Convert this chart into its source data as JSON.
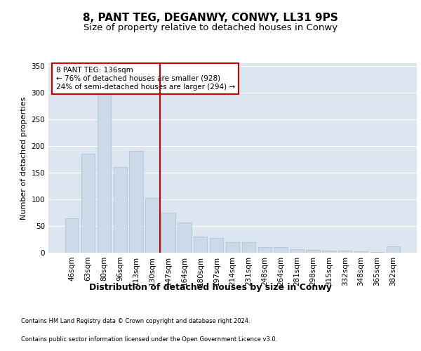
{
  "title": "8, PANT TEG, DEGANWY, CONWY, LL31 9PS",
  "subtitle": "Size of property relative to detached houses in Conwy",
  "xlabel": "Distribution of detached houses by size in Conwy",
  "ylabel": "Number of detached properties",
  "categories": [
    "46sqm",
    "63sqm",
    "80sqm",
    "96sqm",
    "113sqm",
    "130sqm",
    "147sqm",
    "164sqm",
    "180sqm",
    "197sqm",
    "214sqm",
    "231sqm",
    "248sqm",
    "264sqm",
    "281sqm",
    "298sqm",
    "315sqm",
    "332sqm",
    "348sqm",
    "365sqm",
    "382sqm"
  ],
  "values": [
    65,
    185,
    320,
    160,
    190,
    103,
    75,
    57,
    30,
    28,
    20,
    20,
    10,
    11,
    6,
    5,
    4,
    4,
    3,
    1,
    12
  ],
  "bar_color": "#ccd9e8",
  "bar_edge_color": "#a8bfd0",
  "vline_color": "#cc0000",
  "vline_x": 5.5,
  "annotation_text": "8 PANT TEG: 136sqm\n← 76% of detached houses are smaller (928)\n24% of semi-detached houses are larger (294) →",
  "annotation_box_color": "#cc0000",
  "ylim": [
    0,
    355
  ],
  "yticks": [
    0,
    50,
    100,
    150,
    200,
    250,
    300,
    350
  ],
  "plot_bg_color": "#dce6f0",
  "grid_color": "#ffffff",
  "footer1": "Contains HM Land Registry data © Crown copyright and database right 2024.",
  "footer2": "Contains public sector information licensed under the Open Government Licence v3.0.",
  "title_fontsize": 11,
  "subtitle_fontsize": 9.5,
  "xlabel_fontsize": 9,
  "ylabel_fontsize": 8,
  "tick_fontsize": 7.5,
  "annotation_fontsize": 7.5,
  "footer_fontsize": 6
}
